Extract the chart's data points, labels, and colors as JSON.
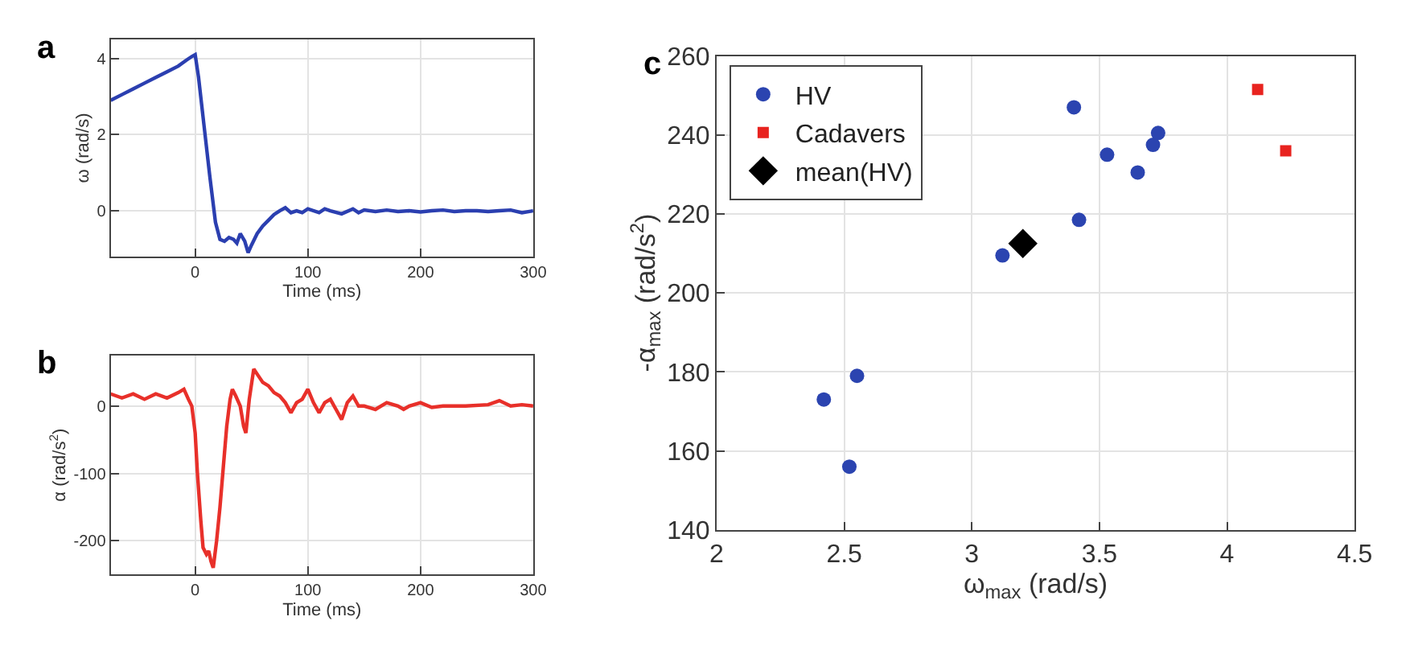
{
  "chart_data": [
    {
      "type": "line",
      "title": "a",
      "xlabel": "Time (ms)",
      "ylabel": "ω (rad/s)",
      "xlim": [
        -75,
        300
      ],
      "xticks": [
        0,
        100,
        200,
        300
      ],
      "ylim": [
        -1.2,
        4.5
      ],
      "yticks": [
        0,
        2,
        4
      ],
      "grid": true,
      "legend": false,
      "marker": "none",
      "line_style": "solid",
      "series": [
        {
          "color": "#2b3fb0",
          "x": [
            -75,
            -65,
            -55,
            -45,
            -35,
            -25,
            -15,
            -8,
            -3,
            0,
            3,
            8,
            13,
            18,
            22,
            26,
            30,
            34,
            37,
            40,
            44,
            47,
            50,
            55,
            60,
            65,
            70,
            75,
            80,
            85,
            90,
            95,
            100,
            110,
            115,
            120,
            130,
            140,
            145,
            150,
            160,
            170,
            180,
            190,
            200,
            210,
            220,
            230,
            240,
            250,
            260,
            270,
            280,
            290,
            300
          ],
          "values": [
            2.9,
            3.05,
            3.2,
            3.35,
            3.5,
            3.65,
            3.8,
            3.95,
            4.05,
            4.1,
            3.5,
            2.2,
            0.9,
            -0.3,
            -0.75,
            -0.8,
            -0.7,
            -0.75,
            -0.85,
            -0.6,
            -0.8,
            -1.1,
            -0.9,
            -0.6,
            -0.4,
            -0.25,
            -0.1,
            0.0,
            0.08,
            -0.05,
            0.0,
            -0.05,
            0.05,
            -0.05,
            0.05,
            0.0,
            -0.08,
            0.05,
            -0.05,
            0.02,
            -0.02,
            0.02,
            -0.02,
            0.0,
            -0.03,
            0.0,
            0.02,
            -0.02,
            0.0,
            0.0,
            -0.02,
            0.0,
            0.02,
            -0.05,
            0.0
          ]
        }
      ]
    },
    {
      "type": "line",
      "title": "b",
      "xlabel": "Time (ms)",
      "ylabel": "α (rad/s$^{2}$)",
      "xlim": [
        -75,
        300
      ],
      "xticks": [
        0,
        100,
        200,
        300
      ],
      "ylim": [
        -250,
        75
      ],
      "yticks": [
        -200,
        -100,
        0
      ],
      "grid": true,
      "legend": false,
      "marker": "none",
      "line_style": "solid",
      "series": [
        {
          "color": "#e8302a",
          "x": [
            -75,
            -65,
            -55,
            -45,
            -35,
            -25,
            -15,
            -10,
            -6,
            -3,
            0,
            2,
            5,
            7,
            10,
            12,
            14,
            16,
            19,
            22,
            25,
            28,
            31,
            33,
            36,
            40,
            43,
            45,
            48,
            52,
            56,
            60,
            65,
            70,
            75,
            80,
            85,
            90,
            95,
            100,
            105,
            110,
            115,
            120,
            125,
            130,
            135,
            140,
            145,
            150,
            160,
            170,
            180,
            185,
            190,
            200,
            210,
            220,
            240,
            260,
            270,
            280,
            290,
            300
          ],
          "values": [
            18,
            12,
            18,
            10,
            18,
            12,
            20,
            25,
            10,
            0,
            -40,
            -100,
            -170,
            -210,
            -220,
            -215,
            -230,
            -240,
            -200,
            -150,
            -90,
            -30,
            10,
            25,
            15,
            0,
            -30,
            -40,
            10,
            55,
            45,
            35,
            30,
            20,
            15,
            5,
            -10,
            5,
            10,
            25,
            5,
            -10,
            5,
            10,
            -5,
            -20,
            5,
            15,
            0,
            0,
            -5,
            5,
            0,
            -5,
            0,
            5,
            -2,
            0,
            0,
            2,
            8,
            0,
            2,
            0
          ]
        }
      ]
    },
    {
      "type": "scatter",
      "title": "c",
      "xlabel": "ω$_{max}$ (rad/s)",
      "ylabel": "-α$_{max}$ (rad/s$^{2}$)",
      "xlim": [
        2,
        4.5
      ],
      "xticks": [
        2,
        2.5,
        3,
        3.5,
        4,
        4.5
      ],
      "ylim": [
        140,
        260
      ],
      "yticks": [
        140,
        160,
        180,
        200,
        220,
        240,
        260
      ],
      "grid": true,
      "legend": "top left",
      "series": [
        {
          "name": "HV",
          "color": "#2b44b0",
          "marker": "circle",
          "x": [
            2.42,
            2.52,
            2.55,
            3.12,
            3.4,
            3.42,
            3.53,
            3.65,
            3.71,
            3.73
          ],
          "values": [
            173,
            156,
            179,
            209.5,
            247,
            218.5,
            235,
            230.5,
            237.5,
            240.5
          ]
        },
        {
          "name": "Cadavers",
          "color": "#e8231f",
          "marker": "square",
          "x": [
            4.12,
            4.23
          ],
          "values": [
            251.5,
            236
          ]
        },
        {
          "name": "mean(HV)",
          "color": "#000000",
          "marker": "diamond",
          "x": [
            3.2
          ],
          "values": [
            212.5
          ]
        }
      ]
    }
  ]
}
